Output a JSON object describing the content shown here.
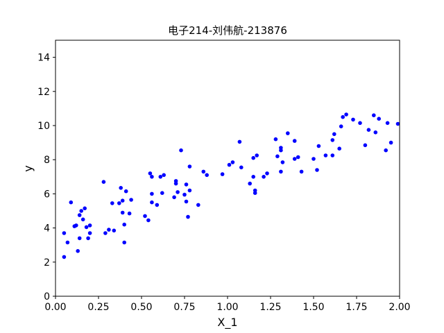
{
  "chart_data": {
    "type": "scatter",
    "title": "电子214-刘伟航-213876",
    "xlabel": "X_1",
    "ylabel": "y",
    "xlim": [
      0,
      2
    ],
    "ylim": [
      0,
      15
    ],
    "xticks": [
      "0.00",
      "0.25",
      "0.50",
      "0.75",
      "1.00",
      "1.25",
      "1.50",
      "1.75",
      "2.00"
    ],
    "yticks": [
      "0",
      "2",
      "4",
      "6",
      "8",
      "10",
      "12",
      "14"
    ],
    "grid": false,
    "marker_color": "#0000ff",
    "points": [
      [
        0.05,
        2.3
      ],
      [
        0.05,
        3.7
      ],
      [
        0.07,
        3.15
      ],
      [
        0.09,
        5.5
      ],
      [
        0.11,
        4.1
      ],
      [
        0.12,
        4.15
      ],
      [
        0.13,
        2.65
      ],
      [
        0.14,
        3.4
      ],
      [
        0.14,
        4.75
      ],
      [
        0.15,
        5.0
      ],
      [
        0.16,
        4.5
      ],
      [
        0.17,
        5.15
      ],
      [
        0.18,
        4.05
      ],
      [
        0.19,
        3.4
      ],
      [
        0.2,
        3.7
      ],
      [
        0.2,
        4.15
      ],
      [
        0.28,
        6.7
      ],
      [
        0.29,
        3.7
      ],
      [
        0.31,
        3.9
      ],
      [
        0.33,
        5.45
      ],
      [
        0.34,
        3.85
      ],
      [
        0.37,
        5.45
      ],
      [
        0.38,
        6.35
      ],
      [
        0.39,
        5.6
      ],
      [
        0.39,
        4.9
      ],
      [
        0.4,
        4.2
      ],
      [
        0.4,
        3.15
      ],
      [
        0.41,
        6.15
      ],
      [
        0.43,
        4.85
      ],
      [
        0.44,
        5.65
      ],
      [
        0.52,
        4.7
      ],
      [
        0.54,
        4.45
      ],
      [
        0.55,
        7.2
      ],
      [
        0.56,
        7.0
      ],
      [
        0.56,
        6.0
      ],
      [
        0.56,
        5.5
      ],
      [
        0.59,
        5.35
      ],
      [
        0.61,
        7.0
      ],
      [
        0.62,
        6.05
      ],
      [
        0.63,
        7.1
      ],
      [
        0.69,
        5.8
      ],
      [
        0.7,
        6.75
      ],
      [
        0.7,
        6.6
      ],
      [
        0.71,
        6.1
      ],
      [
        0.73,
        8.55
      ],
      [
        0.75,
        5.95
      ],
      [
        0.76,
        5.55
      ],
      [
        0.76,
        6.55
      ],
      [
        0.77,
        4.65
      ],
      [
        0.78,
        6.2
      ],
      [
        0.78,
        7.6
      ],
      [
        0.83,
        5.35
      ],
      [
        0.86,
        7.3
      ],
      [
        0.88,
        7.1
      ],
      [
        0.97,
        7.15
      ],
      [
        1.01,
        7.7
      ],
      [
        1.03,
        7.85
      ],
      [
        1.07,
        9.05
      ],
      [
        1.08,
        7.55
      ],
      [
        1.13,
        6.6
      ],
      [
        1.15,
        7.0
      ],
      [
        1.15,
        8.1
      ],
      [
        1.16,
        6.2
      ],
      [
        1.16,
        6.05
      ],
      [
        1.17,
        8.25
      ],
      [
        1.21,
        7.0
      ],
      [
        1.23,
        7.2
      ],
      [
        1.28,
        9.2
      ],
      [
        1.29,
        8.2
      ],
      [
        1.31,
        7.3
      ],
      [
        1.31,
        8.55
      ],
      [
        1.31,
        8.7
      ],
      [
        1.32,
        7.85
      ],
      [
        1.35,
        9.55
      ],
      [
        1.39,
        9.1
      ],
      [
        1.39,
        8.05
      ],
      [
        1.41,
        8.15
      ],
      [
        1.43,
        7.3
      ],
      [
        1.5,
        8.05
      ],
      [
        1.52,
        7.4
      ],
      [
        1.53,
        8.8
      ],
      [
        1.57,
        8.25
      ],
      [
        1.61,
        8.25
      ],
      [
        1.61,
        9.15
      ],
      [
        1.62,
        9.5
      ],
      [
        1.65,
        8.65
      ],
      [
        1.66,
        9.95
      ],
      [
        1.67,
        10.5
      ],
      [
        1.69,
        10.65
      ],
      [
        1.73,
        10.35
      ],
      [
        1.77,
        10.15
      ],
      [
        1.8,
        8.85
      ],
      [
        1.82,
        9.75
      ],
      [
        1.85,
        10.6
      ],
      [
        1.86,
        9.6
      ],
      [
        1.88,
        10.4
      ],
      [
        1.92,
        8.55
      ],
      [
        1.93,
        10.15
      ],
      [
        1.95,
        9.0
      ],
      [
        1.99,
        10.1
      ]
    ]
  }
}
